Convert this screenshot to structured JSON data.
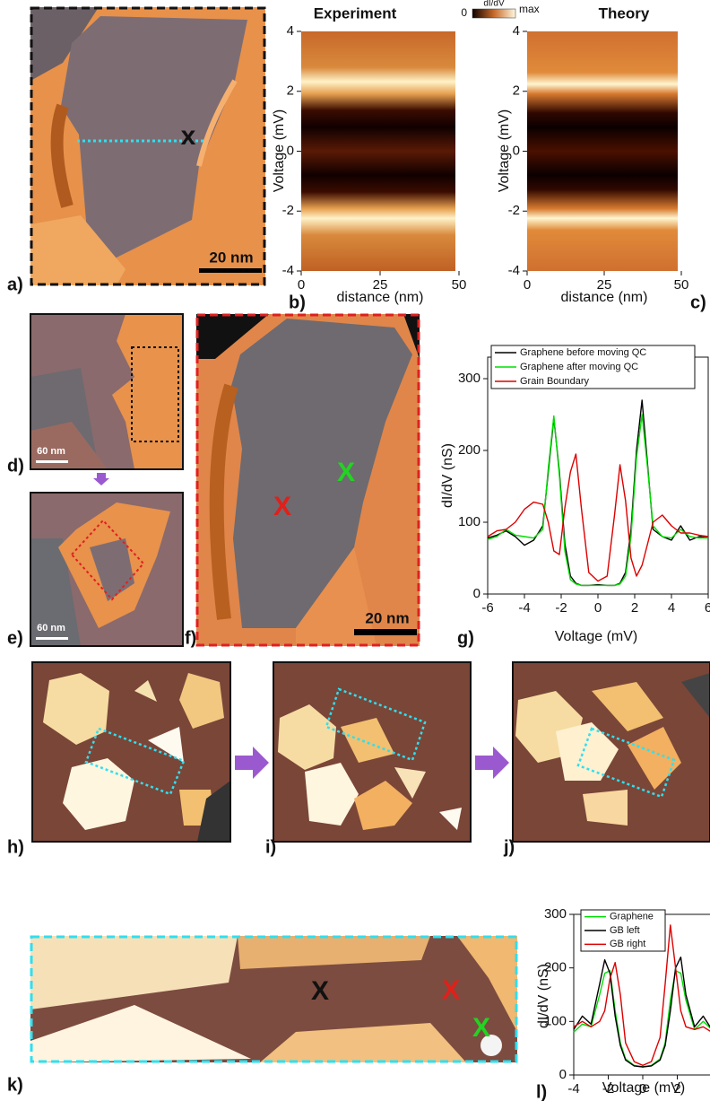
{
  "figure": {
    "panel_labels": [
      "a)",
      "b)",
      "c)",
      "d)",
      "e)",
      "f)",
      "g)",
      "h)",
      "i)",
      "j)",
      "k)",
      "l)"
    ],
    "scale_bars": [
      "20 nm",
      "60 nm",
      "60 nm",
      "20 nm"
    ],
    "markers": [
      {
        "text": "x",
        "color": "#111111"
      },
      {
        "text": "X",
        "color": "#e0201a"
      },
      {
        "text": "X",
        "color": "#22d422"
      },
      {
        "text": "X",
        "color": "#111111"
      },
      {
        "text": "X",
        "color": "#e0201a"
      },
      {
        "text": "X",
        "color": "#22d422"
      }
    ]
  },
  "chart_data": [
    {
      "type": "heatmap",
      "title": "Experiment",
      "xlabel": "distance (nm)",
      "ylabel": "Voltage (mV)",
      "xlim": [
        0,
        50
      ],
      "xticks": [
        0,
        25,
        50
      ],
      "ylim": [
        -4,
        4
      ],
      "yticks": [
        -4,
        -2,
        0,
        2,
        4
      ],
      "colorbar": {
        "min_label": "0",
        "label": "dI/dV",
        "max_label": "max"
      }
    },
    {
      "type": "heatmap",
      "title": "Theory",
      "xlabel": "distance (nm)",
      "ylabel": "Voltage (mV)",
      "xlim": [
        0,
        50
      ],
      "xticks": [
        0,
        25,
        50
      ],
      "ylim": [
        -4,
        4
      ],
      "yticks": [
        -4,
        -2,
        0,
        2,
        4
      ]
    },
    {
      "type": "line",
      "xlabel": "Voltage (mV)",
      "ylabel": "dI/dV (nS)",
      "xlim": [
        -6,
        6
      ],
      "xticks": [
        -6,
        -4,
        -2,
        0,
        2,
        4,
        6
      ],
      "ylim": [
        0,
        330
      ],
      "yticks": [
        0,
        100,
        200,
        300
      ],
      "legend": "upper left",
      "x": [
        -6,
        -5.5,
        -5,
        -4.5,
        -4,
        -3.5,
        -3,
        -2.7,
        -2.4,
        -2.1,
        -1.8,
        -1.5,
        -1.2,
        -0.9,
        -0.5,
        0,
        0.5,
        0.9,
        1.2,
        1.5,
        1.8,
        2.1,
        2.4,
        2.7,
        3,
        3.5,
        4,
        4.5,
        5,
        5.5,
        6
      ],
      "series": [
        {
          "name": "Graphene before moving QC",
          "color": "#000000",
          "values": [
            78,
            82,
            88,
            80,
            68,
            75,
            95,
            170,
            245,
            170,
            70,
            25,
            15,
            12,
            12,
            13,
            12,
            12,
            15,
            30,
            90,
            200,
            270,
            180,
            90,
            80,
            75,
            95,
            75,
            80,
            78
          ]
        },
        {
          "name": "Graphene after moving QC",
          "color": "#00dd00",
          "values": [
            76,
            80,
            90,
            82,
            80,
            78,
            90,
            175,
            248,
            165,
            60,
            20,
            14,
            12,
            12,
            12,
            12,
            12,
            14,
            25,
            80,
            190,
            250,
            175,
            95,
            80,
            78,
            90,
            80,
            78,
            78
          ]
        },
        {
          "name": "Grain Boundary",
          "color": "#dd0000",
          "values": [
            80,
            88,
            90,
            100,
            118,
            128,
            125,
            100,
            60,
            55,
            120,
            170,
            195,
            120,
            30,
            18,
            25,
            110,
            180,
            130,
            50,
            25,
            40,
            70,
            100,
            110,
            95,
            85,
            85,
            82,
            80
          ]
        }
      ]
    },
    {
      "type": "line",
      "xlabel": "Voltage (mV)",
      "ylabel": "dI/dV (nS)",
      "xlim": [
        -4,
        4
      ],
      "xticks": [
        -4,
        -2,
        0,
        2
      ],
      "ylim": [
        0,
        300
      ],
      "yticks": [
        0,
        100,
        200,
        300
      ],
      "legend": "upper left",
      "x": [
        -4,
        -3.5,
        -3,
        -2.5,
        -2.2,
        -1.9,
        -1.6,
        -1.3,
        -1,
        -0.5,
        0,
        0.5,
        1,
        1.3,
        1.6,
        1.9,
        2.2,
        2.5,
        3,
        3.5,
        4
      ],
      "series": [
        {
          "name": "Graphene",
          "color": "#00dd00",
          "values": [
            80,
            95,
            90,
            150,
            190,
            195,
            120,
            60,
            30,
            18,
            15,
            18,
            30,
            60,
            140,
            195,
            190,
            140,
            85,
            100,
            85
          ]
        },
        {
          "name": "GB left",
          "color": "#000000",
          "values": [
            85,
            110,
            95,
            170,
            215,
            190,
            110,
            55,
            28,
            17,
            15,
            17,
            28,
            55,
            120,
            200,
            220,
            150,
            90,
            110,
            85
          ]
        },
        {
          "name": "GB right",
          "color": "#dd0000",
          "values": [
            90,
            100,
            90,
            100,
            120,
            180,
            210,
            150,
            60,
            25,
            18,
            25,
            70,
            170,
            280,
            200,
            120,
            90,
            85,
            90,
            80
          ]
        }
      ]
    }
  ]
}
